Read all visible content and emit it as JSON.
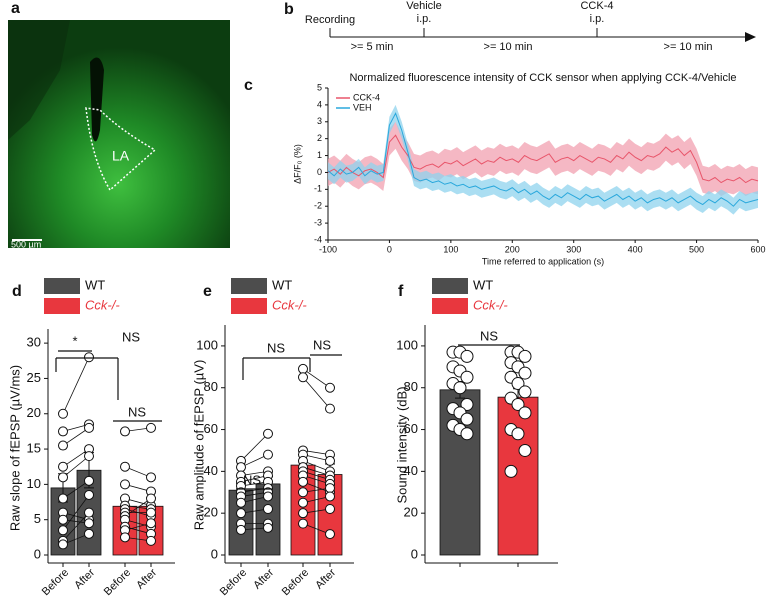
{
  "panels": {
    "a": {
      "label": "a",
      "region": "LA",
      "scale_bar": "500 µm"
    },
    "b": {
      "label": "b",
      "start": "Recording",
      "events": [
        {
          "name": "Vehicle",
          "route": "i.p."
        },
        {
          "name": "CCK-4",
          "route": "i.p."
        }
      ],
      "intervals": [
        ">= 5 min",
        ">= 10 min",
        ">= 10 min"
      ]
    }
  },
  "chart_data": [
    {
      "panel_label": "c",
      "type": "line",
      "title": "Normalized fluorescence intensity of CCK sensor when applying CCK-4/Vehicle",
      "x_label": "Time referred to application (s)",
      "y_label": "ΔF/F₀ (%)",
      "x": [
        -100,
        -90,
        -80,
        -70,
        -60,
        -50,
        -40,
        -30,
        -20,
        -10,
        0,
        10,
        20,
        30,
        40,
        50,
        60,
        70,
        80,
        90,
        100,
        110,
        120,
        130,
        140,
        150,
        160,
        170,
        180,
        190,
        200,
        210,
        220,
        230,
        240,
        250,
        260,
        270,
        280,
        290,
        300,
        310,
        320,
        330,
        340,
        350,
        360,
        370,
        380,
        390,
        400,
        410,
        420,
        430,
        440,
        450,
        460,
        470,
        480,
        490,
        500,
        510,
        520,
        530,
        540,
        550,
        560,
        570,
        580,
        590,
        600
      ],
      "xlim": [
        -100,
        600
      ],
      "xticks": [
        -100,
        0,
        100,
        200,
        300,
        400,
        500,
        600
      ],
      "ylim": [
        -4,
        5
      ],
      "yticks": [
        -4,
        -3,
        -2,
        -1,
        0,
        1,
        2,
        3,
        4,
        5
      ],
      "legend": "upper left",
      "series": [
        {
          "name": "CCK-4",
          "color": "#e8556a",
          "band_color": "#f2a0b0",
          "band": 0.8,
          "values": [
            0,
            0.2,
            -0.1,
            0.3,
            0,
            -0.2,
            0.1,
            0.2,
            0,
            -0.3,
            1.8,
            2.2,
            1.5,
            1.0,
            0.3,
            0.2,
            0.4,
            0.5,
            0.3,
            0.6,
            0.5,
            0.7,
            0.4,
            0.6,
            0.8,
            0.5,
            0.7,
            0.6,
            0.9,
            0.7,
            0.8,
            0.6,
            1.0,
            0.8,
            0.7,
            0.9,
            1.1,
            0.6,
            0.8,
            0.9,
            0.7,
            1.0,
            0.8,
            0.6,
            0.9,
            0.8,
            0.6,
            1.0,
            0.8,
            1.2,
            0.9,
            0.7,
            1.0,
            0.9,
            1.1,
            1.5,
            1.2,
            1.4,
            1.0,
            1.3,
            0.6,
            -0.4,
            -0.5,
            -0.3,
            -0.6,
            -0.4,
            -0.5,
            -0.3,
            -0.6,
            -0.4,
            -0.5
          ]
        },
        {
          "name": "VEH",
          "color": "#2aa8dc",
          "band_color": "#8fd3ee",
          "band": 0.5,
          "values": [
            0.1,
            -0.2,
            0.2,
            -0.1,
            0,
            0.3,
            -0.2,
            0.1,
            -0.1,
            0,
            2.8,
            3.5,
            2.5,
            1.2,
            -0.3,
            -0.5,
            -0.4,
            -0.6,
            -0.5,
            -0.7,
            -0.6,
            -0.8,
            -0.7,
            -0.9,
            -0.8,
            -1.0,
            -0.9,
            -0.8,
            -1.0,
            -1.1,
            -0.9,
            -1.2,
            -1.0,
            -1.3,
            -1.1,
            -1.4,
            -1.6,
            -1.3,
            -1.5,
            -1.2,
            -1.4,
            -1.6,
            -1.3,
            -1.5,
            -1.4,
            -1.7,
            -1.5,
            -1.3,
            -1.6,
            -1.4,
            -1.7,
            -1.5,
            -1.8,
            -1.6,
            -1.5,
            -1.7,
            -1.5,
            -1.8,
            -1.6,
            -1.4,
            -1.7,
            -1.9,
            -1.6,
            -1.8,
            -1.5,
            -1.7,
            -2.0,
            -1.6,
            -1.8,
            -1.7,
            -1.6
          ]
        }
      ]
    },
    {
      "panel_label": "d",
      "type": "bar",
      "y_label": "Raw slope of fEPSP (µV/ms)",
      "categories": [
        "Before",
        "After",
        "Before",
        "After"
      ],
      "ylim": [
        0,
        32
      ],
      "yticks": [
        0,
        5,
        10,
        15,
        20,
        25,
        30
      ],
      "series": [
        {
          "name": "WT",
          "color": "#4d4d4d",
          "values": [
            9.5,
            12,
            null,
            null
          ],
          "errors": [
            2,
            2.5,
            null,
            null
          ],
          "points": [
            [
              20,
              17.5,
              15.5,
              12.5,
              11,
              8,
              6,
              5,
              3.5,
              2,
              1.5
            ],
            [
              28,
              18.5,
              18,
              15,
              14,
              10.5,
              5,
              4.5,
              8.5,
              6,
              3
            ],
            null,
            null
          ]
        },
        {
          "name": "Cck-/-",
          "color": "#e8373e",
          "values": [
            null,
            null,
            6.9,
            6.9
          ],
          "errors": [
            null,
            null,
            1.2,
            1.2
          ],
          "points": [
            null,
            null,
            [
              17.5,
              12.5,
              10,
              8,
              7,
              6.5,
              6,
              5.5,
              5,
              4,
              3.5,
              2.5
            ],
            [
              18,
              11,
              9,
              7,
              6.5,
              5.5,
              6,
              8,
              4,
              3,
              4.5,
              2
            ]
          ]
        }
      ],
      "annotations": [
        "*",
        "NS",
        "NS"
      ]
    },
    {
      "panel_label": "e",
      "type": "bar",
      "y_label": "Raw amplitude of fEPSP (µV)",
      "categories": [
        "Before",
        "After",
        "Before",
        "After"
      ],
      "ylim": [
        0,
        110
      ],
      "yticks": [
        0,
        20,
        40,
        60,
        80,
        100
      ],
      "series": [
        {
          "name": "WT",
          "color": "#4d4d4d",
          "values": [
            31,
            34,
            null,
            null
          ],
          "errors": [
            3,
            3.5,
            null,
            null
          ],
          "points": [
            [
              45,
              42,
              38,
              35,
              33,
              30,
              28,
              25,
              20,
              15,
              12
            ],
            [
              58,
              48,
              40,
              38,
              35,
              32,
              30,
              28,
              22,
              15,
              13
            ],
            null,
            null
          ]
        },
        {
          "name": "Cck-/-",
          "color": "#e8373e",
          "values": [
            null,
            null,
            43,
            38.5
          ],
          "errors": [
            null,
            null,
            5,
            5
          ],
          "points": [
            null,
            null,
            [
              89,
              85,
              50,
              48,
              45,
              42,
              40,
              38,
              35,
              30,
              25,
              20,
              15
            ],
            [
              80,
              70,
              48,
              45,
              40,
              38,
              36,
              34,
              30,
              32,
              28,
              22,
              10
            ]
          ]
        }
      ],
      "annotations": [
        "NS",
        "NS",
        "NS"
      ]
    },
    {
      "panel_label": "f",
      "type": "bar",
      "y_label": "Sound intensity (dB)",
      "categories": [
        null,
        null
      ],
      "ylim": [
        0,
        110
      ],
      "yticks": [
        0,
        20,
        40,
        60,
        80,
        100
      ],
      "series": [
        {
          "name": "WT",
          "color": "#4d4d4d",
          "values": [
            79,
            null
          ],
          "errors": [
            4,
            null
          ],
          "points": [
            [
              97,
              97,
              95,
              90,
              88,
              85,
              82,
              80,
              72,
              70,
              68,
              65,
              62,
              60,
              58
            ],
            null
          ]
        },
        {
          "name": "Cck-/-",
          "color": "#e8373e",
          "values": [
            null,
            75.5
          ],
          "errors": [
            null,
            4
          ],
          "points": [
            null,
            [
              97,
              97,
              95,
              92,
              90,
              87,
              85,
              82,
              78,
              75,
              72,
              68,
              60,
              58,
              50,
              40
            ]
          ]
        }
      ],
      "annotations": [
        "NS"
      ]
    }
  ]
}
